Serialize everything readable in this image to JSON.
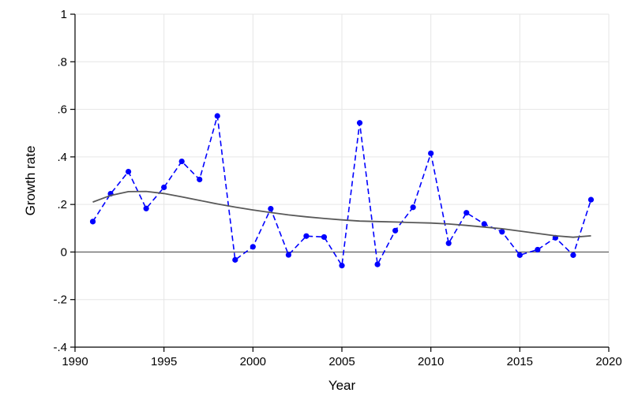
{
  "chart_data": {
    "type": "line",
    "xlabel": "Year",
    "ylabel": "Growth rate",
    "xlim": [
      1990,
      2020
    ],
    "ylim": [
      -0.4,
      1.0
    ],
    "x_ticks": [
      1990,
      1995,
      2000,
      2005,
      2010,
      2015,
      2020
    ],
    "x_tick_labels": [
      "1990",
      "1995",
      "2000",
      "2005",
      "2010",
      "2015",
      "2020"
    ],
    "y_ticks": [
      -0.4,
      -0.2,
      0,
      0.2,
      0.4,
      0.6,
      0.8,
      1.0
    ],
    "y_tick_labels": [
      "-.4",
      "-.2",
      "0",
      ".2",
      ".4",
      ".6",
      ".8",
      "1"
    ],
    "grid": true,
    "reference_line_y": 0,
    "series": [
      {
        "style": "dashed-markers",
        "color": "#0000ff",
        "x": [
          1991,
          1992,
          1993,
          1994,
          1995,
          1996,
          1997,
          1998,
          1999,
          2000,
          2001,
          2002,
          2003,
          2004,
          2005,
          2006,
          2007,
          2008,
          2009,
          2010,
          2011,
          2012,
          2013,
          2014,
          2015,
          2016,
          2017,
          2018,
          2019
        ],
        "y": [
          0.128,
          0.245,
          0.338,
          0.183,
          0.272,
          0.381,
          0.305,
          0.572,
          -0.033,
          0.022,
          0.182,
          -0.012,
          0.067,
          0.063,
          -0.057,
          0.543,
          -0.052,
          0.09,
          0.188,
          0.415,
          0.037,
          0.165,
          0.118,
          0.085,
          -0.013,
          0.01,
          0.06,
          -0.013,
          0.22
        ]
      },
      {
        "style": "solid",
        "color": "#595959",
        "x": [
          1991,
          1992,
          1993,
          1994,
          1995,
          1996,
          1997,
          1998,
          1999,
          2000,
          2001,
          2002,
          2003,
          2004,
          2005,
          2006,
          2007,
          2008,
          2009,
          2010,
          2011,
          2012,
          2013,
          2014,
          2015,
          2016,
          2017,
          2018,
          2019
        ],
        "y": [
          0.21,
          0.238,
          0.254,
          0.255,
          0.246,
          0.232,
          0.217,
          0.202,
          0.189,
          0.177,
          0.166,
          0.156,
          0.148,
          0.141,
          0.135,
          0.13,
          0.128,
          0.126,
          0.124,
          0.122,
          0.118,
          0.112,
          0.105,
          0.098,
          0.088,
          0.078,
          0.068,
          0.062,
          0.068
        ]
      }
    ]
  }
}
